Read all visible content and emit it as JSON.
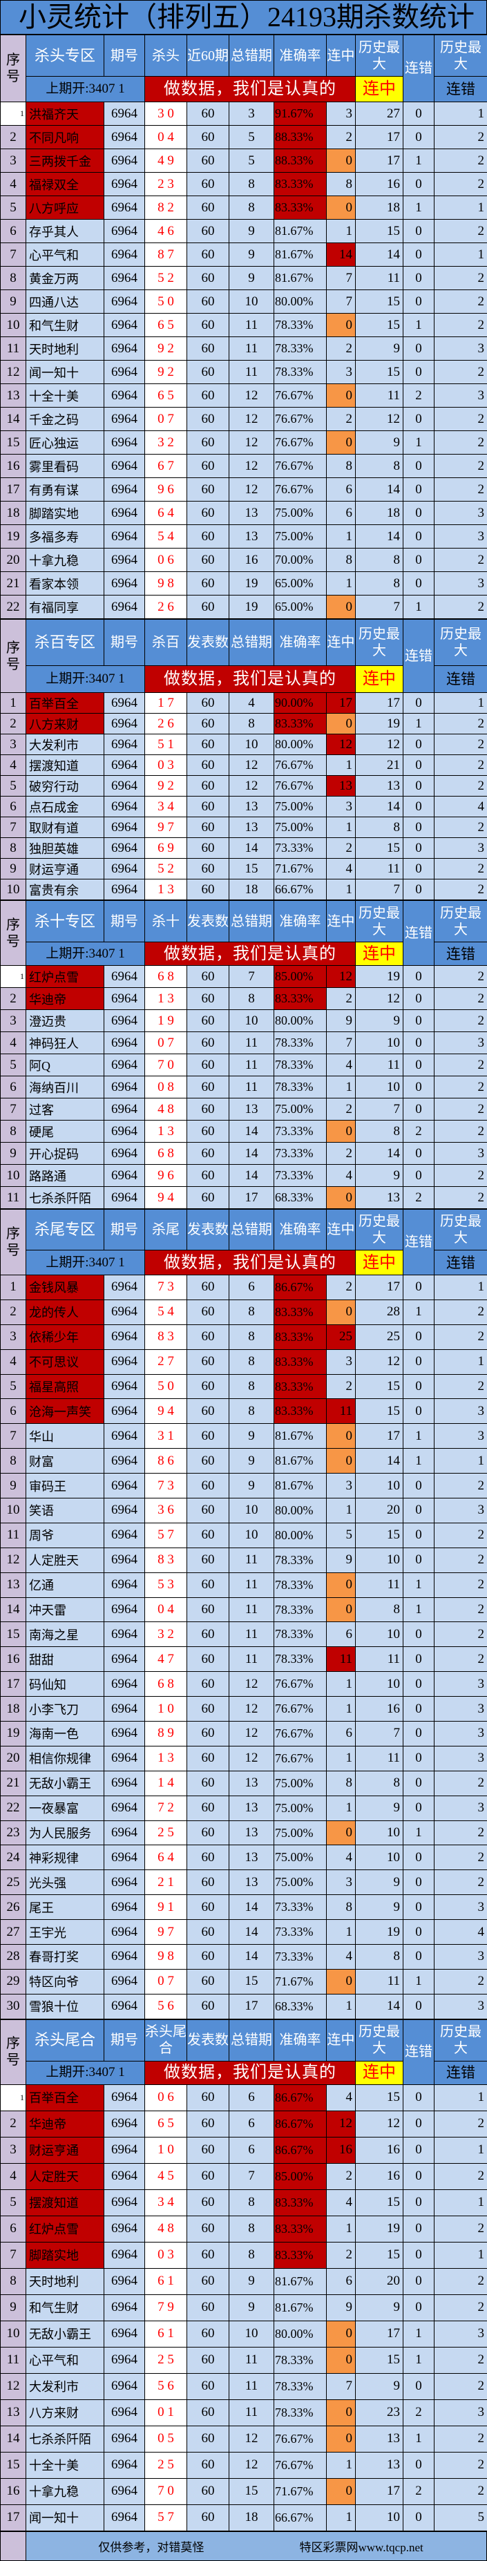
{
  "title": "小灵统计（排列五）24193期杀数统计",
  "colors": {
    "header_blue": "#558ed5",
    "cell_blue": "#c6d9f1",
    "seq_purple": "#ccc0da",
    "highlight_red": "#c00000",
    "zero_orange": "#f79646",
    "banner_yellow": "#ffff00"
  },
  "common": {
    "seq_label": "序号",
    "issue_label": "期号",
    "error_label": "总错期",
    "accuracy_label": "准确率",
    "streak_label": "连中",
    "hist_max_label": "历史最大",
    "miss_label": "连错",
    "hist_max_miss_top": "历史最大",
    "hist_max_miss_bottom": "连错",
    "prev_open": "上期开:3407 1",
    "banner": "做数据，我们是认真的",
    "banner_streak": "连中"
  },
  "sections": [
    {
      "zone": "杀头专区",
      "kill_label": "杀头",
      "count_label": "近60期",
      "highlighted_rows": 5,
      "first_row_small": true,
      "rows": [
        [
          "1",
          "洪福齐天",
          "6964",
          "3 0",
          "60",
          "3",
          "91.67%",
          "3",
          "27",
          "0",
          "1"
        ],
        [
          "2",
          "不同凡响",
          "6964",
          "0 4",
          "60",
          "5",
          "88.33%",
          "2",
          "17",
          "0",
          "2"
        ],
        [
          "3",
          "三两拨千金",
          "6964",
          "4 9",
          "60",
          "5",
          "88.33%",
          "0",
          "17",
          "1",
          "2"
        ],
        [
          "4",
          "福禄双全",
          "6964",
          "2 3",
          "60",
          "8",
          "83.33%",
          "8",
          "16",
          "0",
          "2"
        ],
        [
          "5",
          "八方呼应",
          "6964",
          "8 2",
          "60",
          "8",
          "83.33%",
          "0",
          "18",
          "1",
          "1"
        ],
        [
          "6",
          "存乎其人",
          "6964",
          "4 6",
          "60",
          "9",
          "81.67%",
          "1",
          "15",
          "0",
          "2"
        ],
        [
          "7",
          "心平气和",
          "6964",
          "8 7",
          "60",
          "9",
          "81.67%",
          "14",
          "14",
          "0",
          "1"
        ],
        [
          "8",
          "黄金万两",
          "6964",
          "5 2",
          "60",
          "9",
          "81.67%",
          "7",
          "11",
          "0",
          "2"
        ],
        [
          "9",
          "四通八达",
          "6964",
          "5 0",
          "60",
          "10",
          "80.00%",
          "7",
          "15",
          "0",
          "2"
        ],
        [
          "10",
          "和气生财",
          "6964",
          "6 5",
          "60",
          "11",
          "78.33%",
          "0",
          "15",
          "1",
          "2"
        ],
        [
          "11",
          "天时地利",
          "6964",
          "9 2",
          "60",
          "11",
          "78.33%",
          "2",
          "9",
          "0",
          "3"
        ],
        [
          "12",
          "闻一知十",
          "6964",
          "9 2",
          "60",
          "11",
          "78.33%",
          "3",
          "15",
          "0",
          "2"
        ],
        [
          "13",
          "十全十美",
          "6964",
          "6 5",
          "60",
          "12",
          "76.67%",
          "0",
          "11",
          "2",
          "3"
        ],
        [
          "14",
          "千金之码",
          "6964",
          "0 7",
          "60",
          "12",
          "76.67%",
          "2",
          "12",
          "0",
          "2"
        ],
        [
          "15",
          "匠心独运",
          "6964",
          "3 2",
          "60",
          "12",
          "76.67%",
          "0",
          "9",
          "1",
          "2"
        ],
        [
          "16",
          "雾里看码",
          "6964",
          "6 7",
          "60",
          "12",
          "76.67%",
          "8",
          "8",
          "0",
          "2"
        ],
        [
          "17",
          "有勇有谋",
          "6964",
          "9 6",
          "60",
          "12",
          "76.67%",
          "6",
          "14",
          "0",
          "2"
        ],
        [
          "18",
          "脚踏实地",
          "6964",
          "6 4",
          "60",
          "13",
          "75.00%",
          "6",
          "18",
          "0",
          "3"
        ],
        [
          "19",
          "多福多寿",
          "6964",
          "5 4",
          "60",
          "13",
          "75.00%",
          "1",
          "14",
          "0",
          "3"
        ],
        [
          "20",
          "十拿九稳",
          "6964",
          "0 6",
          "60",
          "16",
          "70.00%",
          "8",
          "8",
          "0",
          "2"
        ],
        [
          "21",
          "看家本领",
          "6964",
          "9 8",
          "60",
          "19",
          "65.00%",
          "1",
          "8",
          "0",
          "3"
        ],
        [
          "22",
          "有福同享",
          "6964",
          "2 6",
          "60",
          "19",
          "65.00%",
          "0",
          "7",
          "1",
          "2"
        ]
      ]
    },
    {
      "zone": "杀百专区",
      "kill_label": "杀百",
      "count_label": "发表数",
      "highlighted_rows": 2,
      "first_row_small": false,
      "rows": [
        [
          "1",
          "百举百全",
          "6964",
          "1 7",
          "60",
          "4",
          "90.00%",
          "17",
          "17",
          "0",
          "1"
        ],
        [
          "2",
          "八方来财",
          "6964",
          "2 6",
          "60",
          "8",
          "83.33%",
          "0",
          "19",
          "1",
          "2"
        ],
        [
          "3",
          "大发利市",
          "6964",
          "5 1",
          "60",
          "10",
          "80.00%",
          "12",
          "12",
          "0",
          "2"
        ],
        [
          "4",
          "摆渡知道",
          "6964",
          "0 3",
          "60",
          "12",
          "76.67%",
          "1",
          "21",
          "0",
          "2"
        ],
        [
          "5",
          "破穷行动",
          "6964",
          "9 2",
          "60",
          "12",
          "76.67%",
          "13",
          "13",
          "0",
          "2"
        ],
        [
          "6",
          "点石成金",
          "6964",
          "3 4",
          "60",
          "13",
          "75.00%",
          "3",
          "14",
          "0",
          "4"
        ],
        [
          "7",
          "取财有道",
          "6964",
          "9 7",
          "60",
          "13",
          "75.00%",
          "1",
          "8",
          "0",
          "2"
        ],
        [
          "8",
          "独胆英雄",
          "6964",
          "6 9",
          "60",
          "14",
          "73.33%",
          "2",
          "15",
          "0",
          "3"
        ],
        [
          "9",
          "财运亨通",
          "6964",
          "5 2",
          "60",
          "15",
          "71.67%",
          "4",
          "11",
          "0",
          "2"
        ],
        [
          "10",
          "富贵有余",
          "6964",
          "1 3",
          "60",
          "18",
          "66.67%",
          "1",
          "7",
          "0",
          "2"
        ]
      ]
    },
    {
      "zone": "杀十专区",
      "kill_label": "杀十",
      "count_label": "发表数",
      "highlighted_rows": 2,
      "first_row_small": true,
      "rows": [
        [
          "1",
          "红炉点雪",
          "6964",
          "6 8",
          "60",
          "7",
          "85.00%",
          "12",
          "19",
          "0",
          "2"
        ],
        [
          "2",
          "华迪帝",
          "6964",
          "1 3",
          "60",
          "8",
          "83.33%",
          "2",
          "12",
          "0",
          "2"
        ],
        [
          "3",
          "澄迈贵",
          "6964",
          "1 9",
          "60",
          "10",
          "80.00%",
          "9",
          "9",
          "0",
          "2"
        ],
        [
          "4",
          "神码狂人",
          "6964",
          "0 7",
          "60",
          "11",
          "78.33%",
          "7",
          "10",
          "0",
          "3"
        ],
        [
          "5",
          "阿Q",
          "6964",
          "7 0",
          "60",
          "11",
          "78.33%",
          "4",
          "11",
          "0",
          "2"
        ],
        [
          "6",
          "海纳百川",
          "6964",
          "0 8",
          "60",
          "11",
          "78.33%",
          "1",
          "10",
          "0",
          "2"
        ],
        [
          "7",
          "过客",
          "6964",
          "4 8",
          "60",
          "13",
          "75.00%",
          "2",
          "7",
          "0",
          "2"
        ],
        [
          "8",
          "硬尾",
          "6964",
          "1 3",
          "60",
          "14",
          "73.33%",
          "0",
          "8",
          "2",
          "2"
        ],
        [
          "9",
          "开心捉码",
          "6964",
          "6 8",
          "60",
          "14",
          "73.33%",
          "2",
          "14",
          "0",
          "3"
        ],
        [
          "10",
          "路路通",
          "6964",
          "9 6",
          "60",
          "14",
          "73.33%",
          "4",
          "9",
          "0",
          "2"
        ],
        [
          "11",
          "七杀杀阡陌",
          "6964",
          "9 4",
          "60",
          "17",
          "68.33%",
          "0",
          "13",
          "2",
          "2"
        ]
      ]
    },
    {
      "zone": "杀尾专区",
      "kill_label": "杀尾",
      "count_label": "发表数",
      "highlighted_rows": 6,
      "first_row_small": false,
      "rows": [
        [
          "1",
          "金钱风暴",
          "6964",
          "7 3",
          "60",
          "6",
          "86.67%",
          "2",
          "17",
          "0",
          "1"
        ],
        [
          "2",
          "龙的传人",
          "6964",
          "5 4",
          "60",
          "8",
          "83.33%",
          "0",
          "28",
          "1",
          "2"
        ],
        [
          "3",
          "依稀少年",
          "6964",
          "8 3",
          "60",
          "8",
          "83.33%",
          "25",
          "25",
          "0",
          "2"
        ],
        [
          "4",
          "不可思议",
          "6964",
          "2 7",
          "60",
          "8",
          "83.33%",
          "3",
          "12",
          "0",
          "1"
        ],
        [
          "5",
          "福星高照",
          "6964",
          "5 0",
          "60",
          "8",
          "83.33%",
          "2",
          "15",
          "0",
          "2"
        ],
        [
          "6",
          "沧海一声笑",
          "6964",
          "9 4",
          "60",
          "8",
          "83.33%",
          "11",
          "15",
          "0",
          "3"
        ],
        [
          "7",
          "华山",
          "6964",
          "3 1",
          "60",
          "9",
          "81.67%",
          "0",
          "17",
          "1",
          "3"
        ],
        [
          "8",
          "财富",
          "6964",
          "8 6",
          "60",
          "9",
          "81.67%",
          "0",
          "14",
          "1",
          "1"
        ],
        [
          "9",
          "审码王",
          "6964",
          "7 3",
          "60",
          "9",
          "81.67%",
          "3",
          "10",
          "0",
          "2"
        ],
        [
          "10",
          "笑语",
          "6964",
          "3 6",
          "60",
          "10",
          "80.00%",
          "1",
          "20",
          "0",
          "3"
        ],
        [
          "11",
          "周爷",
          "6964",
          "5 7",
          "60",
          "10",
          "80.00%",
          "5",
          "15",
          "0",
          "2"
        ],
        [
          "12",
          "人定胜天",
          "6964",
          "8 3",
          "60",
          "11",
          "78.33%",
          "9",
          "10",
          "0",
          "2"
        ],
        [
          "13",
          "亿通",
          "6964",
          "5 3",
          "60",
          "11",
          "78.33%",
          "0",
          "11",
          "1",
          "2"
        ],
        [
          "14",
          "冲天雷",
          "6964",
          "0 4",
          "60",
          "11",
          "78.33%",
          "0",
          "8",
          "1",
          "2"
        ],
        [
          "15",
          "南海之星",
          "6964",
          "3 2",
          "60",
          "11",
          "78.33%",
          "6",
          "10",
          "0",
          "2"
        ],
        [
          "16",
          "甜甜",
          "6964",
          "4 7",
          "60",
          "11",
          "78.33%",
          "11",
          "11",
          "0",
          "2"
        ],
        [
          "17",
          "码仙知",
          "6964",
          "6 8",
          "60",
          "12",
          "76.67%",
          "1",
          "10",
          "0",
          "3"
        ],
        [
          "18",
          "小李飞刀",
          "6964",
          "1 0",
          "60",
          "12",
          "76.67%",
          "1",
          "16",
          "0",
          "3"
        ],
        [
          "19",
          "海南一色",
          "6964",
          "8 9",
          "60",
          "12",
          "76.67%",
          "6",
          "7",
          "0",
          "3"
        ],
        [
          "20",
          "相信你规律",
          "6964",
          "1 3",
          "60",
          "12",
          "76.67%",
          "1",
          "11",
          "0",
          "3"
        ],
        [
          "21",
          "无敌小霸王",
          "6964",
          "1 4",
          "60",
          "13",
          "75.00%",
          "8",
          "8",
          "0",
          "2"
        ],
        [
          "22",
          "一夜暴富",
          "6964",
          "7 2",
          "60",
          "13",
          "75.00%",
          "1",
          "9",
          "0",
          "3"
        ],
        [
          "23",
          "为人民服务",
          "6964",
          "2 5",
          "60",
          "13",
          "75.00%",
          "0",
          "10",
          "1",
          "2"
        ],
        [
          "24",
          "神彩规律",
          "6964",
          "6 4",
          "60",
          "13",
          "75.00%",
          "4",
          "10",
          "0",
          "2"
        ],
        [
          "25",
          "光头强",
          "6964",
          "2 1",
          "60",
          "13",
          "75.00%",
          "3",
          "9",
          "0",
          "2"
        ],
        [
          "26",
          "尾王",
          "6964",
          "9 1",
          "60",
          "14",
          "73.33%",
          "8",
          "9",
          "0",
          "3"
        ],
        [
          "27",
          "王宇光",
          "6964",
          "9 7",
          "60",
          "14",
          "73.33%",
          "1",
          "19",
          "0",
          "4"
        ],
        [
          "28",
          "春哥打奖",
          "6964",
          "9 8",
          "60",
          "14",
          "73.33%",
          "4",
          "8",
          "0",
          "3"
        ],
        [
          "29",
          "特区向爷",
          "6964",
          "0 7",
          "60",
          "15",
          "71.67%",
          "0",
          "11",
          "1",
          "2"
        ],
        [
          "30",
          "雪狼十位",
          "6964",
          "5 6",
          "60",
          "17",
          "68.33%",
          "1",
          "14",
          "0",
          "3"
        ]
      ]
    },
    {
      "zone": "杀头尾合",
      "kill_label": "杀头尾合",
      "count_label": "发表数",
      "highlighted_rows": 7,
      "first_row_small": true,
      "rows": [
        [
          "1",
          "百举百全",
          "6964",
          "0 6",
          "60",
          "6",
          "86.67%",
          "4",
          "15",
          "0",
          "1"
        ],
        [
          "2",
          "华迪帝",
          "6964",
          "6 5",
          "60",
          "6",
          "86.67%",
          "12",
          "12",
          "0",
          "2"
        ],
        [
          "3",
          "财运亨通",
          "6964",
          "1 0",
          "60",
          "6",
          "86.67%",
          "16",
          "16",
          "0",
          "1"
        ],
        [
          "4",
          "人定胜天",
          "6964",
          "4 5",
          "60",
          "7",
          "85.00%",
          "2",
          "16",
          "0",
          "2"
        ],
        [
          "5",
          "摆渡知道",
          "6964",
          "3 4",
          "60",
          "8",
          "83.33%",
          "4",
          "15",
          "0",
          "1"
        ],
        [
          "6",
          "红炉点雪",
          "6964",
          "4 8",
          "60",
          "8",
          "83.33%",
          "1",
          "19",
          "0",
          "2"
        ],
        [
          "7",
          "脚踏实地",
          "6964",
          "0 3",
          "60",
          "8",
          "83.33%",
          "2",
          "15",
          "0",
          "1"
        ],
        [
          "8",
          "天时地利",
          "6964",
          "6 1",
          "60",
          "9",
          "81.67%",
          "6",
          "20",
          "0",
          "2"
        ],
        [
          "9",
          "和气生财",
          "6964",
          "7 9",
          "60",
          "9",
          "81.67%",
          "9",
          "9",
          "0",
          "2"
        ],
        [
          "10",
          "无敌小霸王",
          "6964",
          "6 1",
          "60",
          "10",
          "80.00%",
          "0",
          "17",
          "1",
          "3"
        ],
        [
          "11",
          "心平气和",
          "6964",
          "2 5",
          "60",
          "11",
          "78.33%",
          "0",
          "15",
          "1",
          "2"
        ],
        [
          "12",
          "大发利市",
          "6964",
          "5 6",
          "60",
          "11",
          "78.33%",
          "7",
          "9",
          "0",
          "2"
        ],
        [
          "13",
          "八方来财",
          "6964",
          "0 1",
          "60",
          "11",
          "78.33%",
          "0",
          "23",
          "2",
          "3"
        ],
        [
          "14",
          "七杀杀阡陌",
          "6964",
          "0 5",
          "60",
          "12",
          "76.67%",
          "0",
          "13",
          "1",
          "2"
        ],
        [
          "15",
          "十全十美",
          "6964",
          "2 5",
          "60",
          "12",
          "76.67%",
          "1",
          "13",
          "0",
          "2"
        ],
        [
          "16",
          "十拿九稳",
          "6964",
          "7 0",
          "60",
          "15",
          "71.67%",
          "0",
          "17",
          "2",
          "2"
        ],
        [
          "17",
          "闻一知十",
          "6964",
          "5 7",
          "60",
          "18",
          "66.67%",
          "1",
          "10",
          "0",
          "5"
        ]
      ]
    }
  ],
  "footer": {
    "disclaimer": "仅供参考，对错莫怪",
    "site": "特区彩票网www.tqcp.net"
  }
}
